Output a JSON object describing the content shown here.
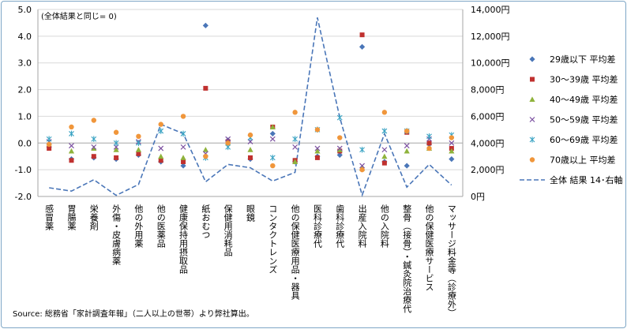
{
  "chart_data": {
    "type": "scatter",
    "note": "(全体結果と同じ= 0)",
    "source": "Source: 総務省「家計調査年報」（二人以上の世帯）より弊社算出。",
    "categories": [
      "感冒薬",
      "胃腸薬",
      "栄養剤",
      "外傷・皮膚病薬",
      "他の外用薬",
      "他の医薬品",
      "健康保持用摂取品",
      "紙おむつ",
      "保健用消耗品",
      "眼鏡",
      "コンタクトレンズ",
      "他の保健医療用品・器具",
      "医科診療代",
      "歯科診療代",
      "出産入院料",
      "他の入院料",
      "整骨（接骨）・鍼灸院治療代",
      "他の保健医療サービス",
      "マッサージ料金等（診療外）"
    ],
    "y_left": {
      "min": -2.0,
      "max": 5.0,
      "step": 1.0,
      "ticks": [
        "-2.0",
        "-1.0",
        "0.0",
        "1.0",
        "2.0",
        "3.0",
        "4.0",
        "5.0"
      ]
    },
    "y_right": {
      "min": 0,
      "max": 14000,
      "step": 2000,
      "ticks": [
        "0円",
        "2,000円",
        "4,000円",
        "6,000円",
        "8,000円",
        "10,000円",
        "12,000円",
        "14,000円"
      ]
    },
    "series": [
      {
        "name": "29歳以下 平均差",
        "marker": "diamond",
        "color": "#4a76b8",
        "values": [
          -0.15,
          -0.6,
          -0.55,
          -0.6,
          -0.45,
          -0.7,
          -0.85,
          4.4,
          0.1,
          -0.6,
          0.35,
          -0.7,
          -0.5,
          -0.45,
          3.6,
          -0.7,
          -0.85,
          -0.05,
          -0.6
        ]
      },
      {
        "name": "30～39歳 平均差",
        "marker": "square",
        "color": "#c0312f",
        "values": [
          -0.2,
          -0.65,
          -0.5,
          -0.55,
          -0.4,
          -0.65,
          -0.7,
          2.05,
          0.05,
          -0.55,
          0.6,
          -0.65,
          -0.55,
          -0.3,
          4.05,
          -0.75,
          0.4,
          0.0,
          -0.2
        ]
      },
      {
        "name": "40～49歳 平均差",
        "marker": "triangle",
        "color": "#8fb33c",
        "values": [
          0.0,
          -0.3,
          -0.2,
          -0.25,
          -0.25,
          -0.5,
          -0.55,
          -0.25,
          0.0,
          -0.25,
          0.6,
          -0.7,
          -0.3,
          -0.25,
          -0.95,
          -0.5,
          -0.3,
          -0.2,
          -0.3
        ]
      },
      {
        "name": "50～59歳 平均差",
        "marker": "x",
        "color": "#7b4fa0",
        "values": [
          0.05,
          -0.1,
          -0.15,
          -0.15,
          0.05,
          -0.2,
          -0.15,
          -0.4,
          0.15,
          0.05,
          0.15,
          -0.15,
          -0.2,
          -0.2,
          -0.85,
          -0.25,
          -0.1,
          0.15,
          0.0
        ]
      },
      {
        "name": "60～69歳 平均差",
        "marker": "star",
        "color": "#3aa3c3",
        "values": [
          0.15,
          0.35,
          0.15,
          0.0,
          0.0,
          0.45,
          0.35,
          -0.55,
          -0.15,
          0.2,
          -0.55,
          0.15,
          0.5,
          0.95,
          -0.25,
          0.45,
          0.45,
          0.25,
          0.3
        ]
      },
      {
        "name": "70歳以上 平均差",
        "marker": "circle",
        "color": "#f0963b",
        "values": [
          -0.05,
          0.6,
          0.85,
          0.4,
          0.25,
          0.7,
          1.0,
          -0.5,
          0.0,
          0.3,
          -0.85,
          1.15,
          0.5,
          0.2,
          -1.0,
          1.15,
          0.45,
          -0.2,
          0.2
        ]
      },
      {
        "name": "全体 結果 14･右軸",
        "marker": "dashed-line",
        "axis": "right",
        "color": "#4a76b8",
        "values": [
          650,
          400,
          1250,
          80,
          900,
          5400,
          4700,
          1100,
          2400,
          2150,
          1150,
          1800,
          13400,
          5900,
          100,
          4700,
          700,
          2400,
          850
        ]
      }
    ],
    "legend_position": "right"
  }
}
